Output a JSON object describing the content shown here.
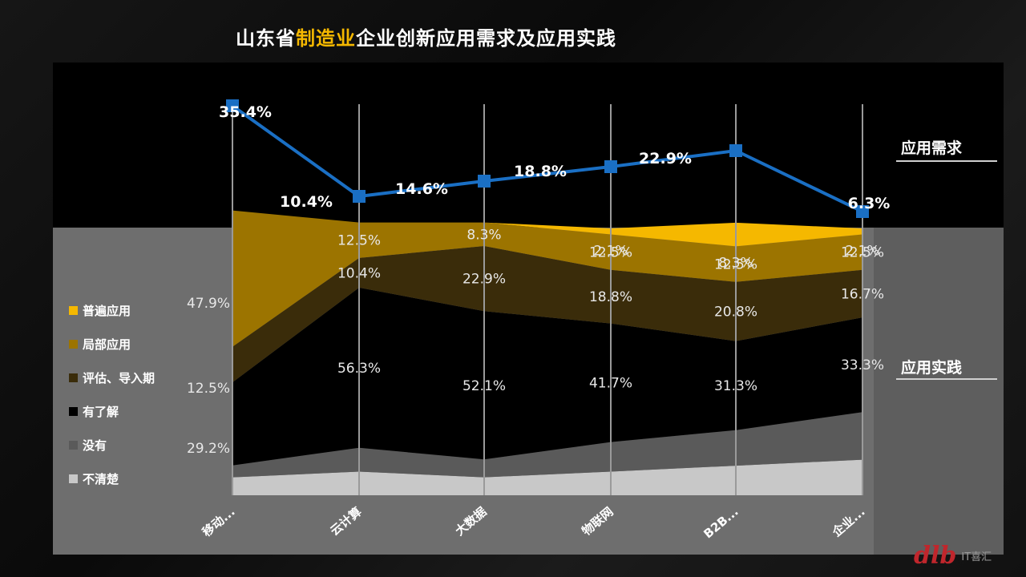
{
  "title": {
    "prefix": "山东省",
    "highlight": "制造业",
    "suffix": "企业创新应用需求及应用实践"
  },
  "side_labels": {
    "demand": "应用需求",
    "practice": "应用实践"
  },
  "watermark": "IT喜汇",
  "colors": {
    "demand_line": "#1a6fc4",
    "普遍应用": "#f5b800",
    "局部应用": "#9c7400",
    "评估、导入期": "#3a2c0a",
    "有了解": "#000000",
    "没有": "#5a5a5a",
    "不清楚": "#c8c8c8"
  },
  "chart_data": [
    {
      "type": "line",
      "categories": [
        "移动...",
        "云计算",
        "大数据",
        "物联网",
        "B2B...",
        "企业..."
      ],
      "series": [
        {
          "name": "应用需求",
          "values": [
            35.4,
            10.4,
            14.6,
            18.8,
            22.9,
            6.3
          ]
        }
      ],
      "data_labels": [
        "35.4%",
        "10.4%",
        "14.6%",
        "18.8%",
        "22.9%",
        "6.3%"
      ]
    },
    {
      "type": "area",
      "stacked_percent": true,
      "categories": [
        "移动...",
        "云计算",
        "大数据",
        "物联网",
        "B2B...",
        "企业..."
      ],
      "series": [
        {
          "name": "不清楚",
          "values": [
            6.3,
            8.3,
            6.3,
            8.3,
            10.4,
            12.5
          ]
        },
        {
          "name": "没有",
          "values": [
            4.2,
            8.4,
            6.3,
            10.4,
            12.5,
            16.7
          ]
        },
        {
          "name": "有了解",
          "values": [
            29.2,
            56.3,
            52.1,
            41.7,
            31.3,
            33.3
          ]
        },
        {
          "name": "评估、导入期",
          "values": [
            12.5,
            10.4,
            22.9,
            18.8,
            20.8,
            16.7
          ]
        },
        {
          "name": "局部应用",
          "values": [
            47.9,
            12.5,
            8.3,
            12.5,
            12.5,
            12.5
          ]
        },
        {
          "name": "普遍应用",
          "values": [
            0,
            0,
            0,
            2.1,
            8.3,
            2.1
          ]
        }
      ],
      "data_labels": [
        {
          "series": "局部应用",
          "category": "移动...",
          "text": "47.9%"
        },
        {
          "series": "评估、导入期",
          "category": "移动...",
          "text": "12.5%"
        },
        {
          "series": "有了解",
          "category": "移动...",
          "text": "29.2%"
        },
        {
          "series": "局部应用",
          "category": "云计算",
          "text": "12.5%"
        },
        {
          "series": "评估、导入期",
          "category": "云计算",
          "text": "10.4%"
        },
        {
          "series": "有了解",
          "category": "云计算",
          "text": "56.3%"
        },
        {
          "series": "局部应用",
          "category": "大数据",
          "text": "8.3%"
        },
        {
          "series": "评估、导入期",
          "category": "大数据",
          "text": "22.9%"
        },
        {
          "series": "有了解",
          "category": "大数据",
          "text": "52.1%"
        },
        {
          "series": "普遍应用",
          "category": "物联网",
          "text": "2.1%"
        },
        {
          "series": "局部应用",
          "category": "物联网",
          "text": "12.5%"
        },
        {
          "series": "评估、导入期",
          "category": "物联网",
          "text": "18.8%"
        },
        {
          "series": "有了解",
          "category": "物联网",
          "text": "41.7%"
        },
        {
          "series": "普遍应用",
          "category": "B2B...",
          "text": "8.3%"
        },
        {
          "series": "局部应用",
          "category": "B2B...",
          "text": "12.5%"
        },
        {
          "series": "评估、导入期",
          "category": "B2B...",
          "text": "20.8%"
        },
        {
          "series": "有了解",
          "category": "B2B...",
          "text": "31.3%"
        },
        {
          "series": "普遍应用",
          "category": "企业...",
          "text": "2.1%"
        },
        {
          "series": "局部应用",
          "category": "企业...",
          "text": "12.5%"
        },
        {
          "series": "评估、导入期",
          "category": "企业...",
          "text": "16.7%"
        },
        {
          "series": "有了解",
          "category": "企业...",
          "text": "33.3%"
        }
      ],
      "legend": [
        "普遍应用",
        "局部应用",
        "评估、导入期",
        "有了解",
        "没有",
        "不清楚"
      ],
      "legend_position": "left",
      "ylim": [
        0,
        100
      ]
    }
  ]
}
